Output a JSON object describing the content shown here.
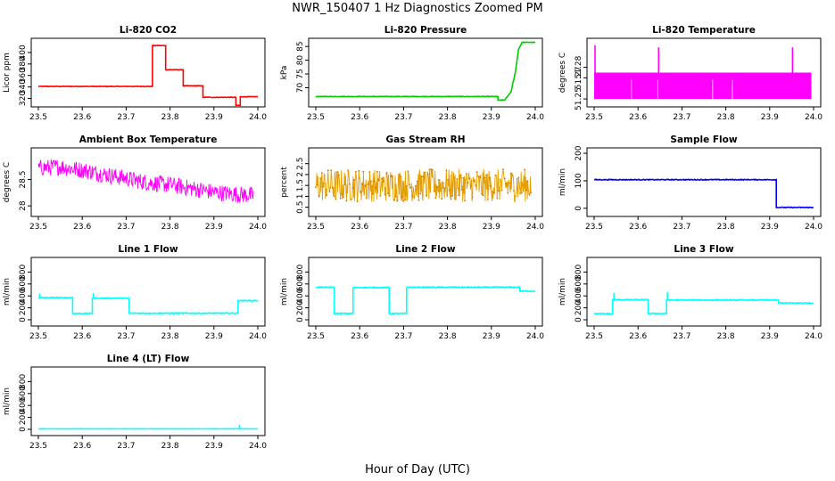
{
  "figure": {
    "title": "NWR_150407  1 Hz Diagnostics Zoomed PM",
    "xlabel": "Hour of Day (UTC)"
  },
  "chart_data": [
    {
      "type": "line",
      "title": "Li-820 CO2",
      "ylabel": "Licor ppm",
      "color": "#ff0000",
      "xlim": [
        23.5,
        24.0
      ],
      "ylim": [
        310,
        420
      ],
      "xticks": [
        23.5,
        23.6,
        23.7,
        23.8,
        23.9,
        24.0
      ],
      "yticks": [
        320,
        340,
        360,
        380,
        400
      ],
      "series": [
        {
          "style": "steps",
          "noise": 0.5,
          "x": [
            23.5,
            23.76,
            23.76,
            23.79,
            23.79,
            23.83,
            23.83,
            23.875,
            23.875,
            23.95,
            23.95,
            23.96,
            23.96,
            24.0
          ],
          "y": [
            341,
            341,
            412,
            412,
            370,
            370,
            342,
            342,
            322,
            322,
            308,
            308,
            323,
            323
          ]
        }
      ]
    },
    {
      "type": "line",
      "title": "Li-820 Pressure",
      "ylabel": "kPa",
      "color": "#00cc00",
      "xlim": [
        23.5,
        24.0
      ],
      "ylim": [
        64,
        87
      ],
      "xticks": [
        23.5,
        23.6,
        23.7,
        23.8,
        23.9,
        24.0
      ],
      "yticks": [
        70,
        75,
        80,
        85
      ],
      "series": [
        {
          "style": "steps",
          "noise": 0.1,
          "x": [
            23.5,
            23.915,
            23.915,
            23.93,
            23.945,
            23.955,
            23.962,
            23.97,
            24.0
          ],
          "y": [
            66.8,
            66.8,
            65.5,
            65.5,
            68.5,
            76,
            84,
            86.5,
            86.5
          ]
        }
      ]
    },
    {
      "type": "line",
      "title": "Li-820 Temperature",
      "ylabel": "degrees C",
      "color": "#ff00ff",
      "xlim": [
        23.5,
        24.0
      ],
      "ylim": [
        51.245,
        51.305
      ],
      "xticks": [
        23.5,
        23.6,
        23.7,
        23.8,
        23.9,
        24.0
      ],
      "yticks": [
        51.25,
        51.27,
        51.28
      ],
      "series": [
        {
          "style": "band",
          "x": [
            23.5,
            23.995
          ],
          "low": 51.25,
          "high": 51.275
        },
        {
          "style": "spikes",
          "base": 51.275,
          "x": [
            23.502,
            23.647,
            23.952
          ],
          "y": [
            51.301,
            51.299,
            51.299
          ]
        }
      ]
    },
    {
      "type": "line",
      "title": "Ambient Box Temperature",
      "ylabel": "degrees C",
      "color": "#ff00ff",
      "xlim": [
        23.5,
        24.0
      ],
      "ylim": [
        27.85,
        29.05
      ],
      "xticks": [
        23.5,
        23.6,
        23.7,
        23.8,
        23.9,
        24.0
      ],
      "yticks": [
        28.0,
        28.5
      ],
      "series": [
        {
          "style": "noise",
          "x": [
            23.5,
            23.55,
            23.6,
            23.65,
            23.7,
            23.75,
            23.8,
            23.85,
            23.9,
            23.95,
            23.99
          ],
          "y": [
            28.72,
            28.74,
            28.68,
            28.6,
            28.52,
            28.44,
            28.4,
            28.33,
            28.26,
            28.22,
            28.2
          ],
          "amp": 0.16
        }
      ]
    },
    {
      "type": "line",
      "title": "Gas Stream RH",
      "ylabel": "percent",
      "color": "#e69f00",
      "xlim": [
        23.5,
        24.0
      ],
      "ylim": [
        0.2,
        3.1
      ],
      "xticks": [
        23.5,
        23.6,
        23.7,
        23.8,
        23.9,
        24.0
      ],
      "yticks": [
        0.5,
        1.0,
        1.5,
        2.0,
        2.5
      ],
      "series": [
        {
          "style": "noise",
          "x": [
            23.5,
            23.99
          ],
          "y": [
            1.5,
            1.5
          ],
          "amp": 0.75
        }
      ]
    },
    {
      "type": "line",
      "title": "Sample Flow",
      "ylabel": "ml/min",
      "color": "#0000ff",
      "xlim": [
        23.5,
        24.0
      ],
      "ylim": [
        -20,
        210
      ],
      "xticks": [
        23.5,
        23.6,
        23.7,
        23.8,
        23.9,
        24.0
      ],
      "yticks": [
        0,
        100,
        200
      ],
      "series": [
        {
          "style": "steps",
          "noise": 1.5,
          "x": [
            23.5,
            23.915,
            23.915,
            24.0
          ],
          "y": [
            104,
            104,
            3,
            3
          ]
        }
      ]
    },
    {
      "type": "line",
      "title": "Line 1 Flow",
      "ylabel": "ml/min",
      "color": "#00ffff",
      "xlim": [
        23.5,
        24.0
      ],
      "ylim": [
        -60,
        1000
      ],
      "xticks": [
        23.5,
        23.6,
        23.7,
        23.8,
        23.9,
        24.0
      ],
      "yticks": [
        0,
        200,
        400,
        600,
        800
      ],
      "series": [
        {
          "style": "steps",
          "noise": 8,
          "x": [
            23.5,
            23.578,
            23.578,
            23.623,
            23.623,
            23.707,
            23.707,
            23.955,
            23.955,
            24.0
          ],
          "y": [
            370,
            370,
            105,
            105,
            360,
            360,
            110,
            110,
            320,
            320
          ]
        },
        {
          "style": "spikes",
          "base": 370,
          "x": [
            23.503,
            23.625
          ],
          "y": [
            440,
            445
          ]
        }
      ]
    },
    {
      "type": "line",
      "title": "Line 2 Flow",
      "ylabel": "ml/min",
      "color": "#00ffff",
      "xlim": [
        23.5,
        24.0
      ],
      "ylim": [
        -60,
        1000
      ],
      "xticks": [
        23.5,
        23.6,
        23.7,
        23.8,
        23.9,
        24.0
      ],
      "yticks": [
        0,
        200,
        400,
        600,
        800
      ],
      "series": [
        {
          "style": "steps",
          "noise": 8,
          "x": [
            23.5,
            23.542,
            23.542,
            23.585,
            23.585,
            23.667,
            23.667,
            23.707,
            23.707,
            23.965,
            23.965,
            24.0
          ],
          "y": [
            545,
            545,
            105,
            105,
            540,
            540,
            105,
            105,
            545,
            545,
            480,
            480
          ]
        }
      ]
    },
    {
      "type": "line",
      "title": "Line 3 Flow",
      "ylabel": "ml/min",
      "color": "#00ffff",
      "xlim": [
        23.5,
        24.0
      ],
      "ylim": [
        -60,
        1000
      ],
      "xticks": [
        23.5,
        23.6,
        23.7,
        23.8,
        23.9,
        24.0
      ],
      "yticks": [
        0,
        200,
        400,
        600,
        800
      ],
      "series": [
        {
          "style": "steps",
          "noise": 8,
          "x": [
            23.5,
            23.542,
            23.542,
            23.623,
            23.623,
            23.665,
            23.665,
            23.92,
            23.92,
            24.0
          ],
          "y": [
            100,
            100,
            335,
            335,
            105,
            105,
            330,
            330,
            280,
            280
          ]
        },
        {
          "style": "spikes",
          "base": 335,
          "x": [
            23.545,
            23.667
          ],
          "y": [
            450,
            460
          ]
        }
      ]
    },
    {
      "type": "line",
      "title": "Line 4 (LT) Flow",
      "ylabel": "ml/min",
      "color": "#00ffff",
      "xlim": [
        23.5,
        24.0
      ],
      "ylim": [
        -60,
        1000
      ],
      "xticks": [
        23.5,
        23.6,
        23.7,
        23.8,
        23.9,
        24.0
      ],
      "yticks": [
        0,
        200,
        400,
        600,
        800
      ],
      "series": [
        {
          "style": "steps",
          "noise": 2,
          "x": [
            23.5,
            24.0
          ],
          "y": [
            8,
            8
          ]
        },
        {
          "style": "spikes",
          "base": 8,
          "x": [
            23.958
          ],
          "y": [
            75
          ]
        }
      ]
    }
  ]
}
